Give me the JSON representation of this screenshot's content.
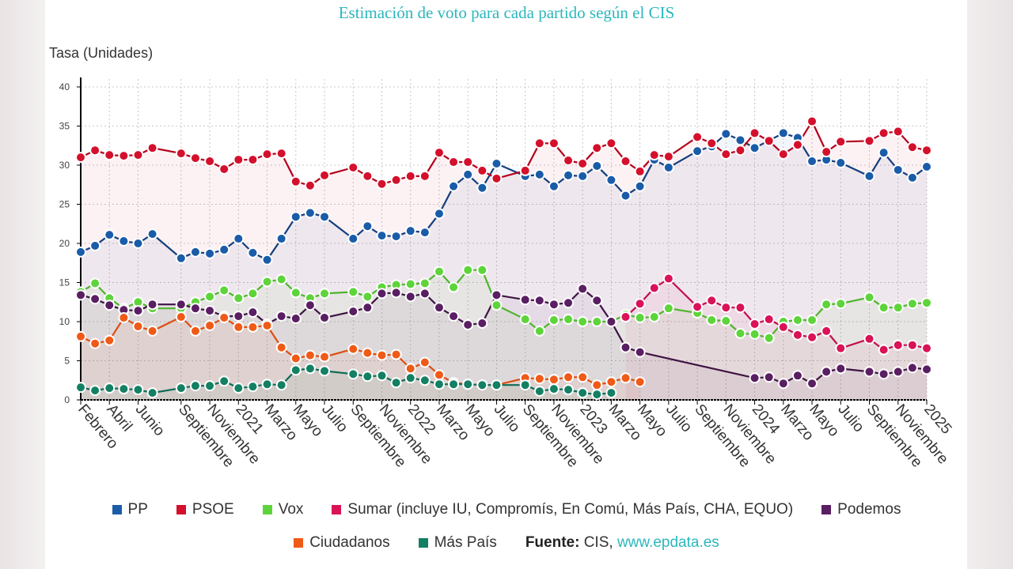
{
  "title": "Estimación de voto para cada partido según el CIS",
  "source": {
    "label": "Fuente:",
    "name": "CIS,",
    "link": "www.epdata.es"
  },
  "chart_data": {
    "type": "line",
    "ylabel": "Tasa (Unidades)",
    "ylim": [
      0,
      40
    ],
    "yticks": [
      0,
      5,
      10,
      15,
      20,
      25,
      30,
      35,
      40
    ],
    "grid": true,
    "legend": "bottom",
    "x": [
      "2020-02",
      "2020-03",
      "2020-04",
      "2020-05",
      "2020-06",
      "2020-07",
      "2020-09",
      "2020-10",
      "2020-11",
      "2020-12",
      "2021-01",
      "2021-02",
      "2021-03",
      "2021-04",
      "2021-05",
      "2021-06",
      "2021-07",
      "2021-09",
      "2021-10",
      "2021-11",
      "2021-12",
      "2022-01",
      "2022-02",
      "2022-03",
      "2022-04",
      "2022-05",
      "2022-06",
      "2022-07",
      "2022-09",
      "2022-10",
      "2022-11",
      "2022-12",
      "2023-01",
      "2023-02",
      "2023-03",
      "2023-04",
      "2023-05",
      "2023-06",
      "2023-07",
      "2023-09",
      "2023-10",
      "2023-11",
      "2023-12",
      "2024-01",
      "2024-02",
      "2024-03",
      "2024-04",
      "2024-05",
      "2024-06",
      "2024-07",
      "2024-09",
      "2024-10",
      "2024-11",
      "2024-12",
      "2025-01"
    ],
    "xticks": [
      {
        "date": "2020-02",
        "label": "Febrero"
      },
      {
        "date": "2020-04",
        "label": "Abril"
      },
      {
        "date": "2020-06",
        "label": "Junio"
      },
      {
        "date": "2020-09",
        "label": "Septiembre"
      },
      {
        "date": "2020-11",
        "label": "Noviembre"
      },
      {
        "date": "2021-01",
        "label": "2021"
      },
      {
        "date": "2021-03",
        "label": "Marzo"
      },
      {
        "date": "2021-05",
        "label": "Mayo"
      },
      {
        "date": "2021-07",
        "label": "Julio"
      },
      {
        "date": "2021-09",
        "label": "Septiembre"
      },
      {
        "date": "2021-11",
        "label": "Noviembre"
      },
      {
        "date": "2022-01",
        "label": "2022"
      },
      {
        "date": "2022-03",
        "label": "Marzo"
      },
      {
        "date": "2022-05",
        "label": "Mayo"
      },
      {
        "date": "2022-07",
        "label": "Julio"
      },
      {
        "date": "2022-09",
        "label": "Septiembre"
      },
      {
        "date": "2022-11",
        "label": "Noviembre"
      },
      {
        "date": "2023-01",
        "label": "2023"
      },
      {
        "date": "2023-03",
        "label": "Marzo"
      },
      {
        "date": "2023-05",
        "label": "Mayo"
      },
      {
        "date": "2023-07",
        "label": "Julio"
      },
      {
        "date": "2023-09",
        "label": "Septiembre"
      },
      {
        "date": "2023-11",
        "label": "Noviembre"
      },
      {
        "date": "2024-01",
        "label": "2024"
      },
      {
        "date": "2024-03",
        "label": "Marzo"
      },
      {
        "date": "2024-05",
        "label": "Mayo"
      },
      {
        "date": "2024-07",
        "label": "Julio"
      },
      {
        "date": "2024-09",
        "label": "Septiembre"
      },
      {
        "date": "2024-11",
        "label": "Noviembre"
      },
      {
        "date": "2025-01",
        "label": "2025"
      }
    ],
    "series": [
      {
        "name": "PP",
        "color": "#1a5ca8",
        "line": "#123f7e",
        "values": [
          18.9,
          19.7,
          21.1,
          20.3,
          20.0,
          21.2,
          18.1,
          18.9,
          18.7,
          19.2,
          20.6,
          18.8,
          17.9,
          20.6,
          23.4,
          23.9,
          23.4,
          20.6,
          22.2,
          21.0,
          20.9,
          21.6,
          21.4,
          23.8,
          27.3,
          28.8,
          27.1,
          30.2,
          28.6,
          28.8,
          27.3,
          28.7,
          28.6,
          29.9,
          28.1,
          26.1,
          27.3,
          30.7,
          29.7,
          31.8,
          32.4,
          34.0,
          33.2,
          32.2,
          null,
          34.1,
          33.5,
          30.5,
          30.7,
          30.3,
          28.6,
          31.6,
          29.4,
          28.4,
          29.8
        ]
      },
      {
        "name": "PSOE",
        "color": "#d4102c",
        "line": "#b3001c",
        "values": [
          31.0,
          31.9,
          31.3,
          31.2,
          31.3,
          32.2,
          31.5,
          30.9,
          30.5,
          29.5,
          30.7,
          30.7,
          31.4,
          31.5,
          27.9,
          27.4,
          28.7,
          29.7,
          28.6,
          27.6,
          28.1,
          28.6,
          28.6,
          31.6,
          30.4,
          30.4,
          29.3,
          28.3,
          29.3,
          32.8,
          32.8,
          30.6,
          30.2,
          32.2,
          32.8,
          30.5,
          29.2,
          31.3,
          31.1,
          33.6,
          32.8,
          31.4,
          31.9,
          34.1,
          33.1,
          31.4,
          32.6,
          35.6,
          31.7,
          33.0,
          33.1,
          34.1,
          34.3,
          32.3,
          31.9
        ]
      },
      {
        "name": "Vox",
        "color": "#5ed43b",
        "line": "#4fb52d",
        "values": [
          13.8,
          14.9,
          13.0,
          11.7,
          12.5,
          11.7,
          11.7,
          12.5,
          13.2,
          14.0,
          13.0,
          13.6,
          15.1,
          15.4,
          13.7,
          13.0,
          13.6,
          13.8,
          13.2,
          14.4,
          14.7,
          14.8,
          14.9,
          16.4,
          14.4,
          16.6,
          16.6,
          12.1,
          10.3,
          8.8,
          10.2,
          10.3,
          10.0,
          10.0,
          10.0,
          10.9,
          10.5,
          10.6,
          11.7,
          11.1,
          10.2,
          10.1,
          8.5,
          8.4,
          7.9,
          10.0,
          10.2,
          10.2,
          12.2,
          12.3,
          13.1,
          11.8,
          11.8,
          12.3,
          12.4
        ]
      },
      {
        "name": "Sumar (incluye IU, Compromís, En Comú, Más País, CHA, EQUO)",
        "color": "#da1257",
        "line": "#c20f4c",
        "values": [
          null,
          null,
          null,
          null,
          null,
          null,
          null,
          null,
          null,
          null,
          null,
          null,
          null,
          null,
          null,
          null,
          null,
          null,
          null,
          null,
          null,
          null,
          null,
          null,
          null,
          null,
          null,
          null,
          null,
          null,
          null,
          null,
          null,
          null,
          null,
          10.6,
          12.3,
          14.3,
          15.5,
          11.9,
          12.7,
          11.8,
          11.8,
          9.7,
          10.3,
          9.3,
          8.3,
          8.0,
          8.8,
          6.6,
          7.8,
          6.4,
          7.0,
          7.0,
          6.6
        ]
      },
      {
        "name": "Podemos",
        "color": "#5a1e63",
        "line": "#3d1442",
        "values": [
          13.4,
          12.9,
          12.1,
          11.5,
          11.4,
          12.2,
          12.2,
          11.7,
          11.4,
          10.7,
          10.7,
          11.2,
          9.7,
          10.7,
          10.4,
          12.1,
          10.5,
          11.3,
          11.8,
          13.6,
          13.7,
          13.2,
          13.6,
          11.8,
          10.7,
          9.6,
          9.8,
          13.4,
          12.8,
          12.7,
          12.2,
          12.4,
          14.2,
          12.7,
          10.0,
          6.7,
          6.1,
          null,
          null,
          null,
          null,
          null,
          null,
          2.8,
          2.9,
          2.1,
          3.1,
          2.1,
          3.6,
          4.0,
          3.6,
          3.3,
          3.6,
          4.1,
          3.9
        ]
      },
      {
        "name": "Ciudadanos",
        "color": "#f05a17",
        "line": "#de4d10",
        "values": [
          8.1,
          7.2,
          7.6,
          10.5,
          9.4,
          8.8,
          10.6,
          8.8,
          9.5,
          10.5,
          9.3,
          9.3,
          9.5,
          6.7,
          5.3,
          5.7,
          5.5,
          6.5,
          6.0,
          5.7,
          5.8,
          4.0,
          4.8,
          3.2,
          2.2,
          2.0,
          1.9,
          1.9,
          2.8,
          2.7,
          2.6,
          2.9,
          2.9,
          1.9,
          2.3,
          2.8,
          2.3,
          null,
          null,
          null,
          null,
          null,
          null,
          null,
          null,
          null,
          null,
          null,
          null,
          null,
          null,
          null,
          null,
          null,
          null
        ]
      },
      {
        "name": "Más País",
        "color": "#138063",
        "line": "#0e6b55",
        "values": [
          1.6,
          1.2,
          1.5,
          1.4,
          1.3,
          0.9,
          1.5,
          1.8,
          1.8,
          2.4,
          1.5,
          1.7,
          2.0,
          1.9,
          3.8,
          4.0,
          3.7,
          3.3,
          3.0,
          3.1,
          2.2,
          2.8,
          2.5,
          2.0,
          2.0,
          2.0,
          1.9,
          1.9,
          1.9,
          1.1,
          1.4,
          1.3,
          0.9,
          0.7,
          0.9,
          null,
          null,
          null,
          null,
          null,
          null,
          null,
          null,
          null,
          null,
          null,
          null,
          null,
          null,
          null,
          null,
          null,
          null,
          null,
          null
        ]
      }
    ]
  }
}
